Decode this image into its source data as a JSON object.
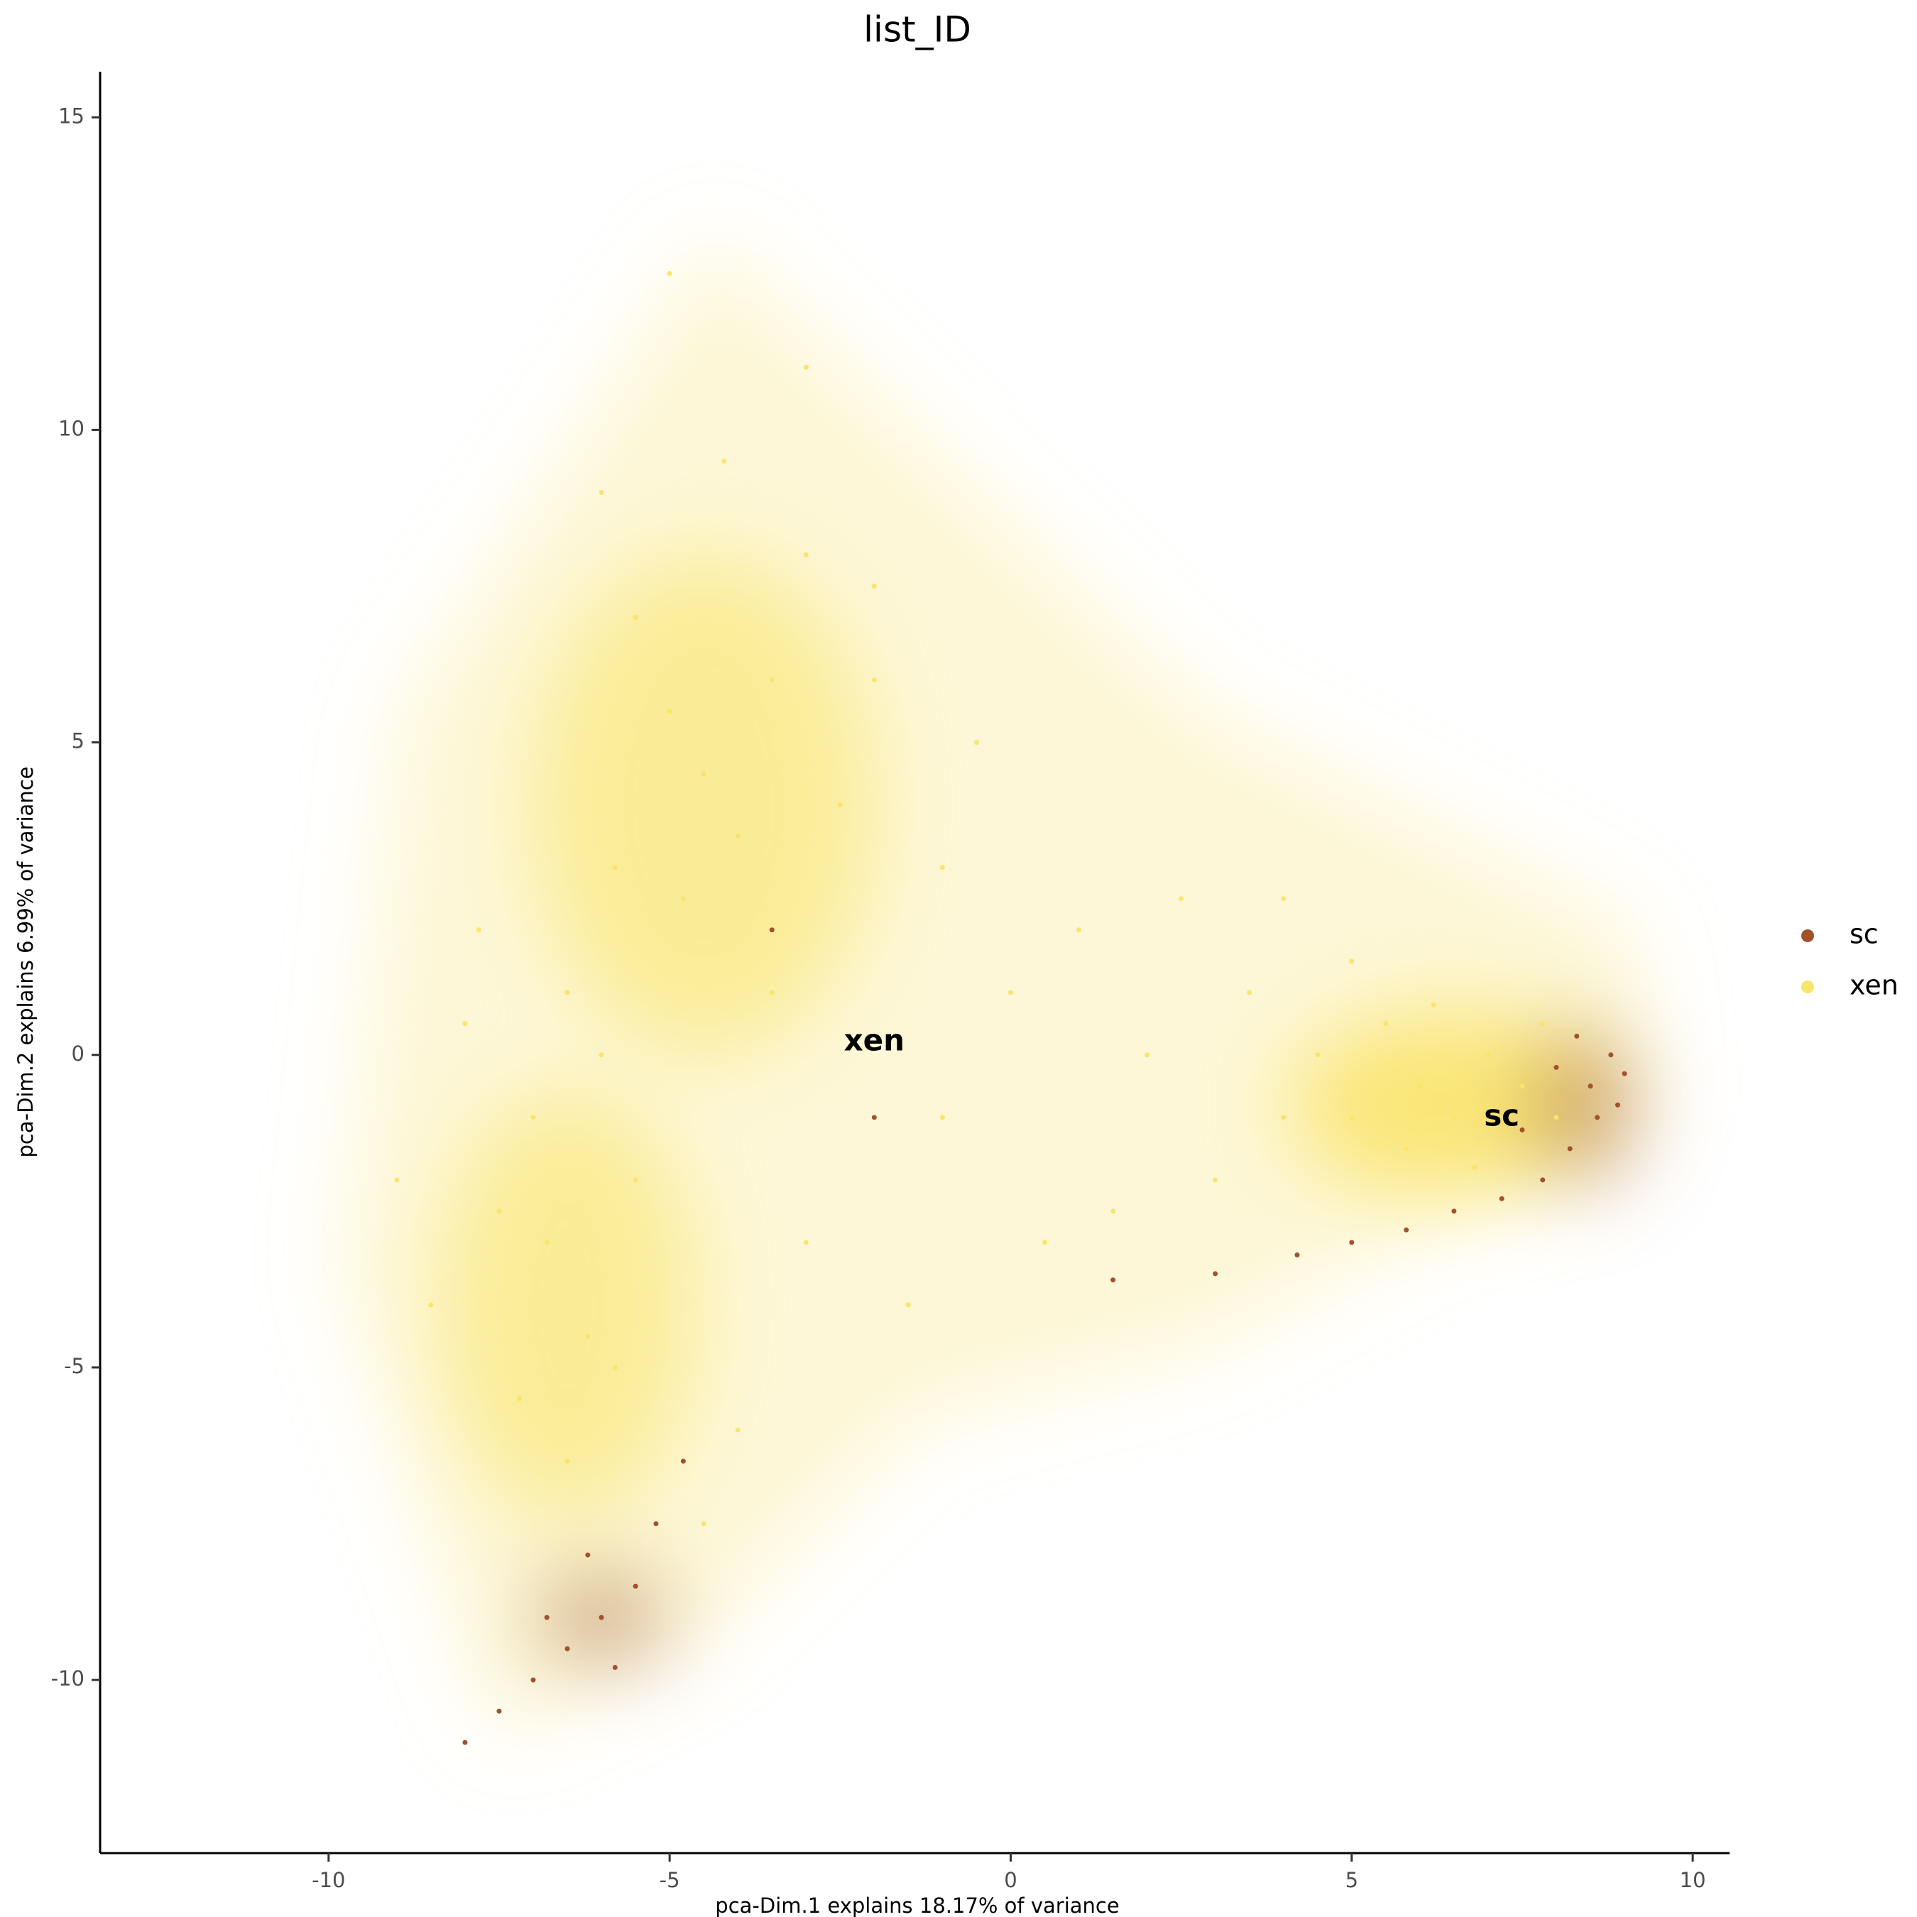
{
  "chart_data": {
    "type": "scatter",
    "title": "list_ID",
    "x_label": "pca-Dim.1 explains 18.17% of variance",
    "y_label": "pca-Dim.2 explains 6.99% of variance",
    "xlim": [
      -13.35,
      10.54
    ],
    "ylim": [
      -12.77,
      15.73
    ],
    "xticks": [
      -10,
      -5,
      0,
      5,
      10
    ],
    "yticks": [
      -10,
      -5,
      0,
      5,
      10,
      15
    ],
    "legend": "right",
    "series": [
      {
        "name": "xen",
        "color": "#F9E46C",
        "x": [
          -4.5,
          -4,
          -5,
          -3.5,
          -4.8,
          -5.5,
          -3,
          -4.2,
          -5.8,
          -6.5,
          -7,
          -6.8,
          -6.2,
          -7.2,
          -6.5,
          -5.8,
          -5.5,
          -6,
          -7.5,
          -8,
          -8.5,
          -7.8,
          -3,
          -5,
          -2.5,
          -2,
          -1,
          0,
          -1,
          1,
          2,
          3,
          2.5,
          3.5,
          4,
          4.5,
          5,
          5.5,
          6,
          6.5,
          7,
          7.5,
          6.2,
          5.8,
          6.8,
          7.8,
          5,
          4,
          8,
          0.5,
          1.5,
          -1.5,
          -3,
          -4,
          -2,
          -0.5,
          -9,
          -6,
          -4.5,
          -3.5
        ],
        "values": [
          4.5,
          3.5,
          5.5,
          6,
          2.5,
          7,
          8,
          9.5,
          3,
          1,
          -1,
          -3,
          -4.5,
          -5.5,
          -6.5,
          -5,
          -2,
          0,
          -2.5,
          0.5,
          -4,
          2,
          11,
          12.5,
          4,
          6,
          3,
          1,
          -1,
          2,
          0,
          -2,
          2.5,
          1,
          -1,
          0,
          -1,
          0.5,
          -0.5,
          -1,
          0,
          -0.5,
          0.8,
          -1.5,
          -1.8,
          0.5,
          1.5,
          2.5,
          -1,
          -3,
          -2.5,
          -4,
          -3,
          -6,
          7.5,
          5,
          -2,
          9,
          -7.5,
          1
        ]
      },
      {
        "name": "sc",
        "color": "#A0522D",
        "x": [
          8.5,
          8.8,
          8.6,
          9,
          8.2,
          7.8,
          7.2,
          6.5,
          5.8,
          5,
          4.2,
          3,
          1.5,
          8.9,
          8.3,
          -6,
          -6.5,
          -5.5,
          -7,
          -6.2,
          -5.2,
          -7.5,
          -6.8,
          -5.8,
          -4.8,
          -8,
          7.5,
          8,
          -3.5,
          -2
        ],
        "values": [
          -0.5,
          0,
          -1,
          -0.3,
          -1.5,
          -2,
          -2.3,
          -2.5,
          -2.8,
          -3,
          -3.2,
          -3.5,
          -3.6,
          -0.8,
          0.3,
          -9,
          -9.5,
          -8.5,
          -10,
          -8,
          -7.5,
          -10.5,
          -9,
          -9.8,
          -6.5,
          -11,
          -1.2,
          -0.2,
          2,
          -1
        ]
      }
    ],
    "annotations": [
      {
        "text": "xen",
        "x": -2.0,
        "y": 0.2
      },
      {
        "text": "sc",
        "x": 7.2,
        "y": -1.0
      }
    ]
  }
}
